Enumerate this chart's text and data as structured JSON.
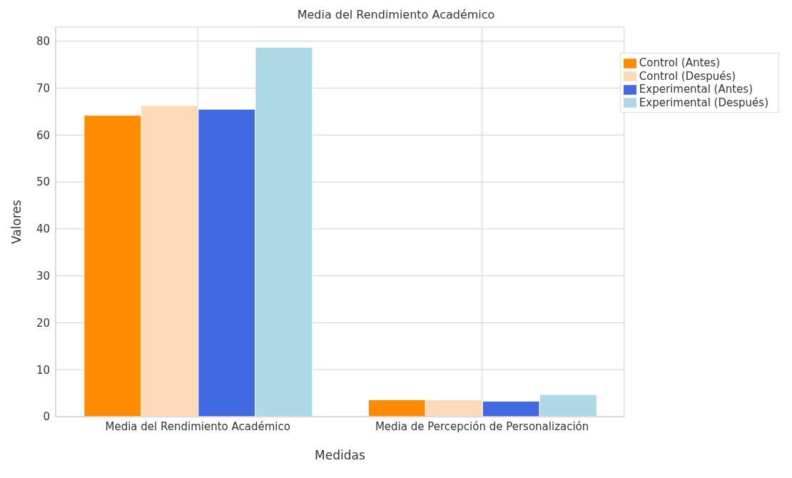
{
  "chart_data": {
    "type": "bar",
    "title": "Media del Rendimiento Académico",
    "xlabel": "Medidas",
    "ylabel": "Valores",
    "categories": [
      "Media del Rendimiento Académico",
      "Media de Percepción de Personalización"
    ],
    "series": [
      {
        "name": "Control (Antes)",
        "color": "#ff8c00",
        "values": [
          64.2,
          3.6
        ]
      },
      {
        "name": "Control (Después)",
        "color": "#ffdab9",
        "values": [
          66.3,
          3.6
        ]
      },
      {
        "name": "Experimental (Antes)",
        "color": "#4169e1",
        "values": [
          65.5,
          3.3
        ]
      },
      {
        "name": "Experimental (Después)",
        "color": "#add8e6",
        "values": [
          78.7,
          4.7
        ]
      }
    ],
    "ylim": [
      0,
      83
    ],
    "yticks": [
      0,
      10,
      20,
      30,
      40,
      50,
      60,
      70,
      80
    ],
    "grid": true,
    "legend": "top right"
  }
}
